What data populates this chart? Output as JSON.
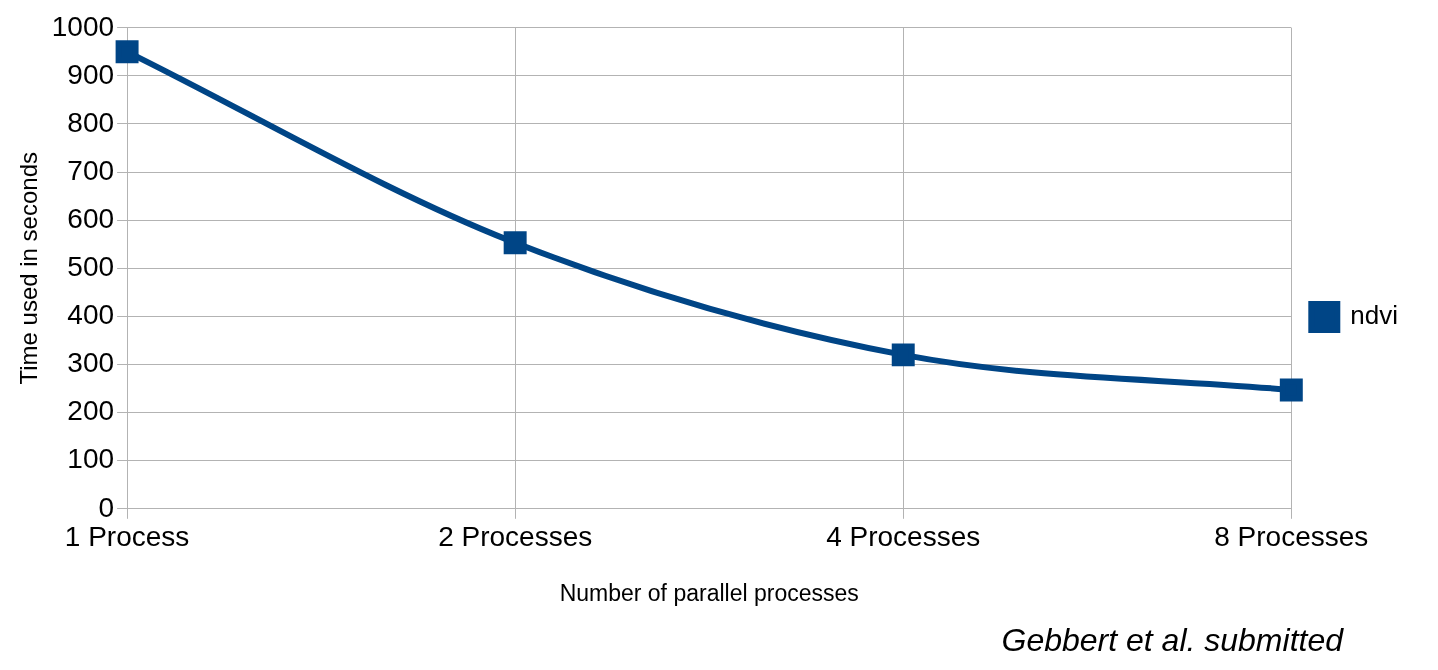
{
  "chart_data": {
    "type": "line",
    "xlabel": "Number of parallel processes",
    "ylabel": "Time used in seconds",
    "categories": [
      "1 Process",
      "2 Processes",
      "4 Processes",
      "8 Processes"
    ],
    "series": [
      {
        "name": "ndvi",
        "color": "#004586",
        "values": [
          950,
          553,
          320,
          247
        ]
      }
    ],
    "ylim": [
      0,
      1000
    ],
    "yticks": [
      0,
      100,
      200,
      300,
      400,
      500,
      600,
      700,
      800,
      900,
      1000
    ],
    "grid": true,
    "legend": "right",
    "marker": "square",
    "line_style": "solid",
    "annotations": [
      "Gebbert et al. submitted"
    ]
  }
}
